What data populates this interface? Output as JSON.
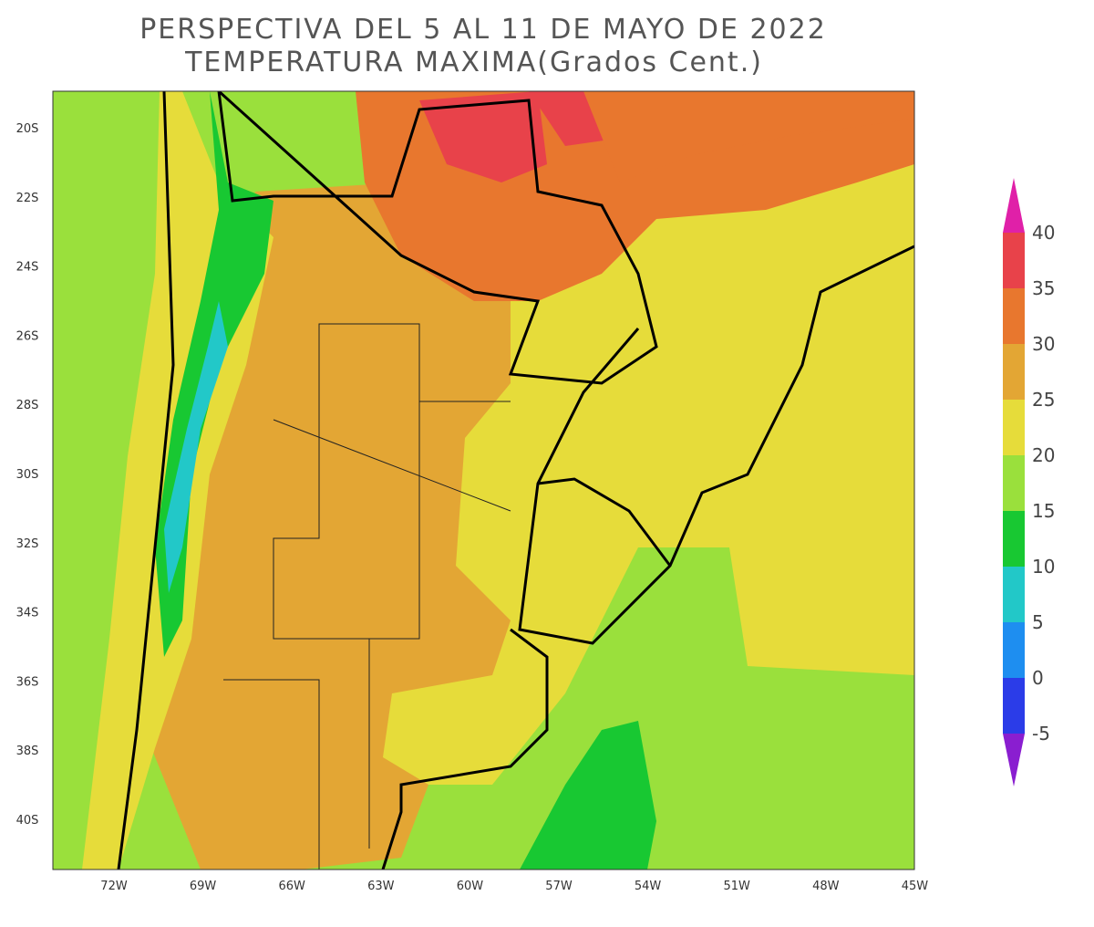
{
  "title": [
    "PERSPECTIVA DEL 5 AL 11 DE MAYO DE 2022",
    "TEMPERATURA MAXIMA(Grados Cent.)"
  ],
  "lat_labels": [
    "20S",
    "22S",
    "24S",
    "26S",
    "28S",
    "30S",
    "32S",
    "34S",
    "36S",
    "38S",
    "40S"
  ],
  "lon_labels": [
    "72W",
    "69W",
    "66W",
    "63W",
    "60W",
    "57W",
    "54W",
    "51W",
    "48W",
    "45W"
  ],
  "colorbar": {
    "labels": [
      40,
      35,
      30,
      25,
      20,
      15,
      10,
      5,
      0,
      -5
    ],
    "colors": [
      "#e020a8",
      "#e8424a",
      "#e8772e",
      "#e3a634",
      "#e6dc3a",
      "#9ae03c",
      "#18c832",
      "#22c8c8",
      "#1e8ef0",
      "#2b3ce8",
      "#8a1ed0"
    ]
  }
}
